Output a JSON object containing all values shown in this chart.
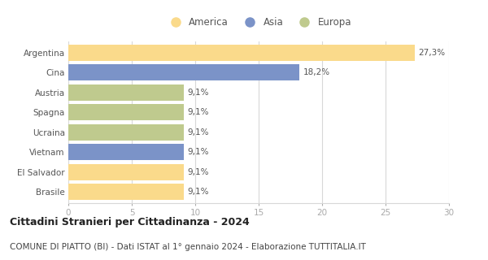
{
  "categories": [
    "Argentina",
    "Cina",
    "Austria",
    "Spagna",
    "Ucraina",
    "Vietnam",
    "El Salvador",
    "Brasile"
  ],
  "values": [
    27.3,
    18.2,
    9.1,
    9.1,
    9.1,
    9.1,
    9.1,
    9.1
  ],
  "labels": [
    "27,3%",
    "18,2%",
    "9,1%",
    "9,1%",
    "9,1%",
    "9,1%",
    "9,1%",
    "9,1%"
  ],
  "colors": [
    "#FADA8B",
    "#7B93C8",
    "#BFCA8E",
    "#BFCA8E",
    "#BFCA8E",
    "#7B93C8",
    "#FADA8B",
    "#FADA8B"
  ],
  "legend": [
    {
      "label": "America",
      "color": "#FADA8B"
    },
    {
      "label": "Asia",
      "color": "#7B93C8"
    },
    {
      "label": "Europa",
      "color": "#BFCA8E"
    }
  ],
  "xlim": [
    0,
    30
  ],
  "xticks": [
    0,
    5,
    10,
    15,
    20,
    25,
    30
  ],
  "title": "Cittadini Stranieri per Cittadinanza - 2024",
  "subtitle": "COMUNE DI PIATTO (BI) - Dati ISTAT al 1° gennaio 2024 - Elaborazione TUTTITALIA.IT",
  "title_fontsize": 9,
  "subtitle_fontsize": 7.5,
  "label_fontsize": 7.5,
  "tick_fontsize": 7.5,
  "legend_fontsize": 8.5,
  "bar_height": 0.82,
  "background_color": "#ffffff",
  "grid_color": "#d8d8d8"
}
